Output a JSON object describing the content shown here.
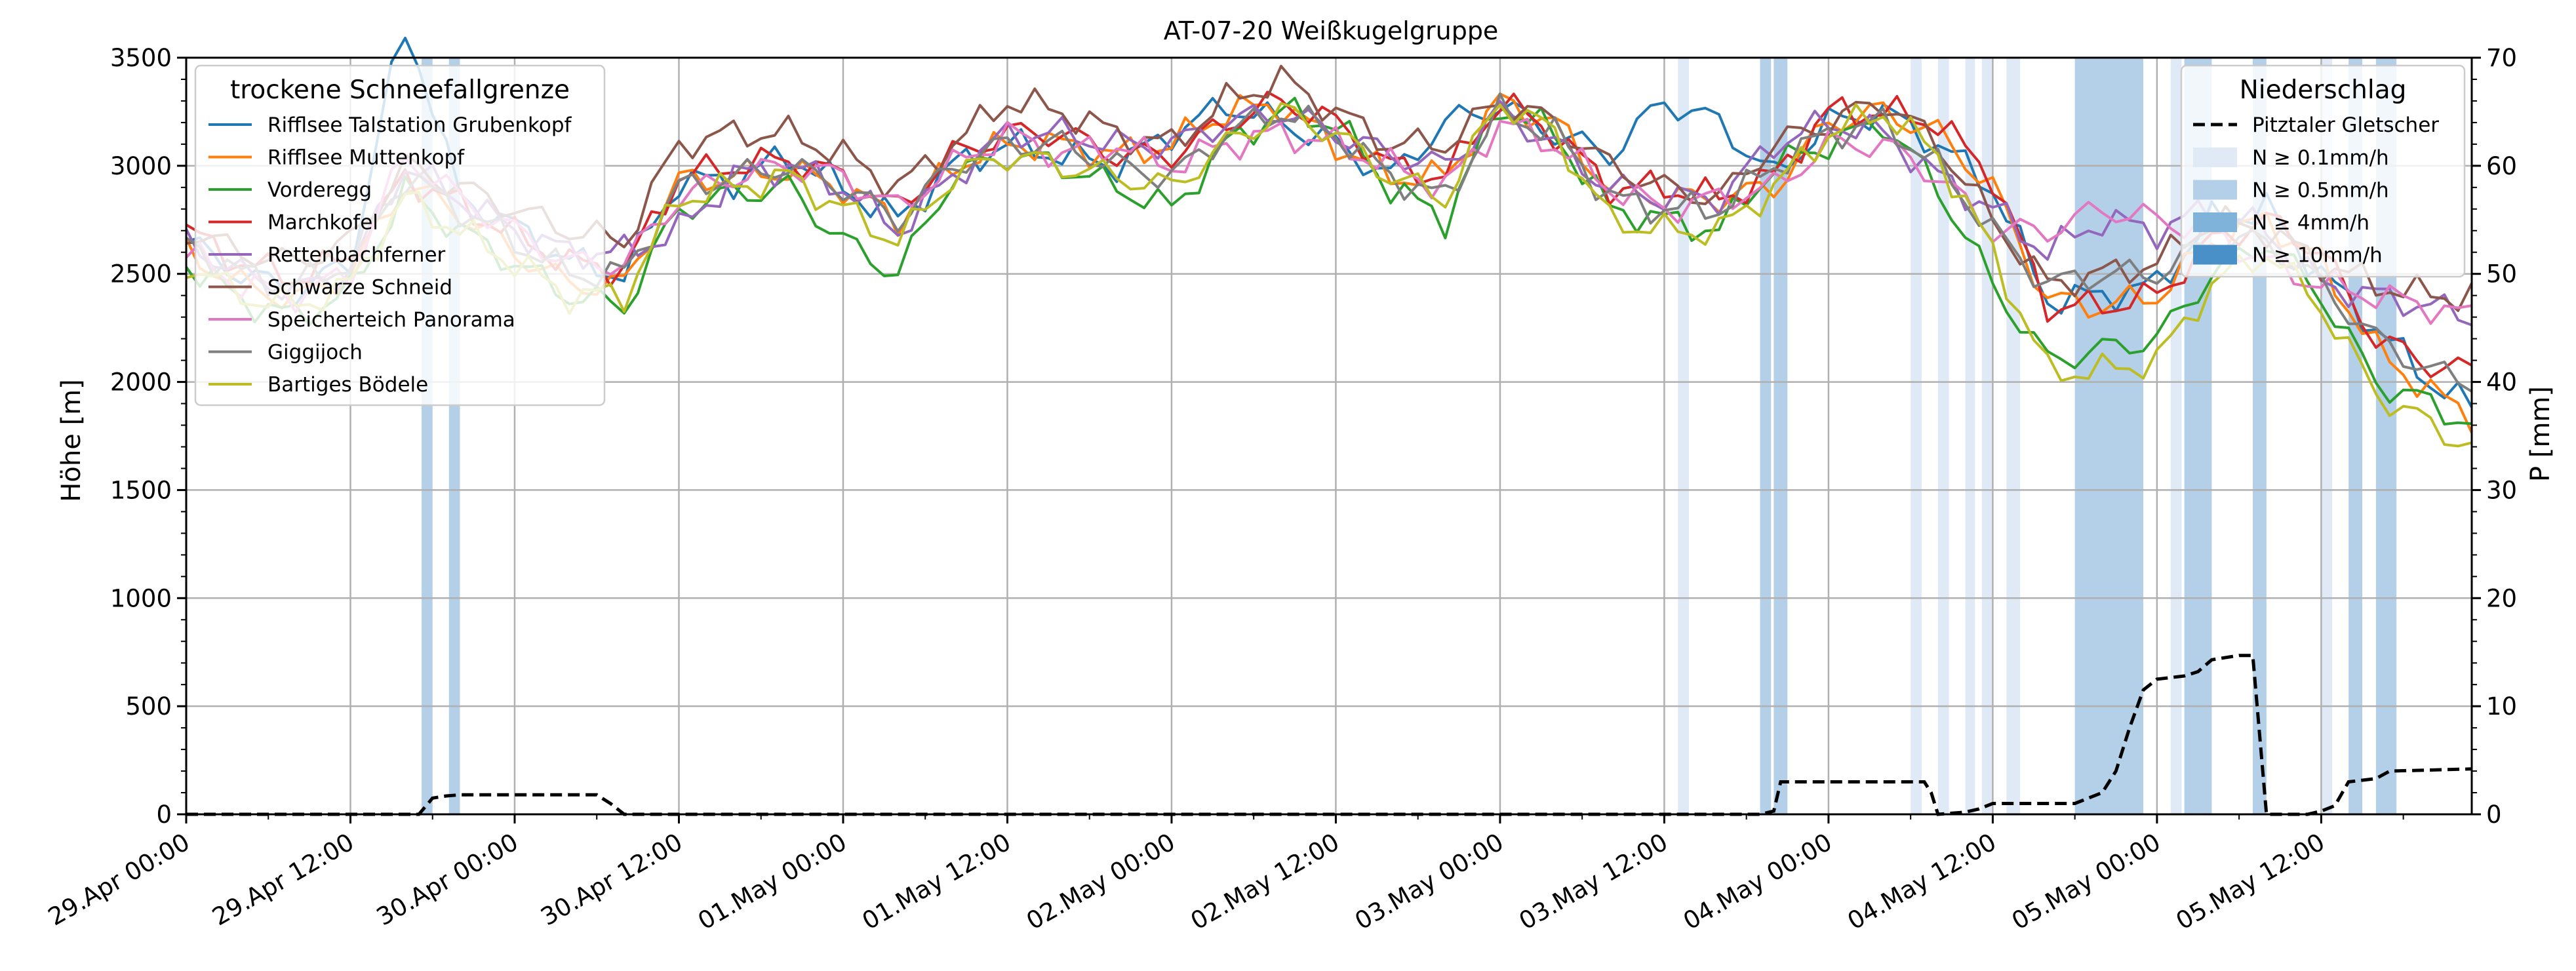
{
  "chart_data": {
    "type": "line",
    "title": "AT-07-20 Weißkugelgruppe",
    "xlabel": "",
    "ylabel": "Höhe [m]",
    "ylabel_right": "P [mm]",
    "ylim": [
      0,
      3500
    ],
    "ylim_right": [
      0,
      70
    ],
    "yticks": [
      0,
      500,
      1000,
      1500,
      2000,
      2500,
      3000,
      3500
    ],
    "yticks_right": [
      0,
      10,
      20,
      30,
      40,
      50,
      60,
      70
    ],
    "xlim": [
      0,
      167
    ],
    "x_tick_hours": [
      0,
      12,
      24,
      36,
      48,
      60,
      72,
      84,
      96,
      108,
      120,
      132,
      144,
      156
    ],
    "x_tick_labels": [
      "29.Apr 00:00",
      "29.Apr 12:00",
      "30.Apr 00:00",
      "30.Apr 12:00",
      "01.May 00:00",
      "01.May 12:00",
      "02.May 00:00",
      "02.May 12:00",
      "03.May 00:00",
      "03.May 12:00",
      "04.May 00:00",
      "04.May 12:00",
      "05.May 00:00",
      "05.May 12:00"
    ],
    "grid": true,
    "legend_left": {
      "title": "trockene Schneefallgrenze",
      "placement": "top-left",
      "entries": [
        "Rifflsee Talstation Grubenkopf",
        "Rifflsee Muttenkopf",
        "Vorderegg",
        "Marchkofel",
        "Rettenbachferner",
        "Schwarze Schneid",
        "Speicherteich Panorama",
        "Giggijoch",
        "Bartiges Bödele"
      ]
    },
    "legend_right": {
      "title": "Niederschlag",
      "placement": "top-right",
      "line_entry": "Pitztaler Gletscher",
      "band_entries": [
        "N ≥ 0.1mm/h",
        "N ≥ 0.5mm/h",
        "N ≥ 4mm/h",
        "N ≥ 10mm/h"
      ],
      "band_colors": [
        "#dfeaf6",
        "#b3d0e8",
        "#7fb3d9",
        "#4a90c8"
      ]
    },
    "series_colors": [
      "#1f77b4",
      "#ff7f0e",
      "#2ca02c",
      "#d62728",
      "#9467bd",
      "#8c564b",
      "#e377c2",
      "#7f7f7f",
      "#bcbd22"
    ],
    "x_keyframes": [
      0,
      4,
      8,
      12,
      16,
      20,
      24,
      28,
      32,
      36,
      40,
      44,
      48,
      52,
      56,
      60,
      64,
      68,
      72,
      76,
      80,
      84,
      88,
      92,
      96,
      100,
      104,
      108,
      112,
      116,
      120,
      124,
      128,
      132,
      136,
      140,
      144,
      148,
      152,
      156,
      160,
      164,
      167
    ],
    "series": [
      {
        "name": "Rifflsee Talstation Grubenkopf",
        "keyframes": [
          2650,
          2500,
          2420,
          2550,
          3700,
          2850,
          2720,
          2560,
          2500,
          2930,
          2930,
          3050,
          2900,
          2750,
          3000,
          3100,
          3050,
          3000,
          3150,
          3280,
          3200,
          3100,
          2950,
          3200,
          3280,
          3150,
          3050,
          3300,
          3200,
          2950,
          3200,
          3250,
          3100,
          2900,
          2380,
          2400,
          2450,
          2750,
          2800,
          2500,
          2250,
          2000,
          1880
        ]
      },
      {
        "name": "Rifflsee Muttenkopf",
        "keyframes": [
          2600,
          2450,
          2380,
          2500,
          2920,
          2780,
          2600,
          2450,
          2450,
          2930,
          2950,
          2980,
          2900,
          2750,
          3000,
          3100,
          3100,
          3050,
          3100,
          3250,
          3280,
          3100,
          2950,
          2950,
          3300,
          3200,
          2900,
          2850,
          2850,
          2900,
          3200,
          3250,
          3150,
          2900,
          2380,
          2350,
          2400,
          2650,
          2750,
          2550,
          2150,
          1950,
          1850
        ]
      },
      {
        "name": "Vorderegg",
        "keyframes": [
          2550,
          2380,
          2300,
          2420,
          2880,
          2700,
          2550,
          2400,
          2350,
          2800,
          2870,
          2900,
          2650,
          2500,
          2950,
          3050,
          3000,
          2900,
          2800,
          3100,
          3250,
          3200,
          2900,
          2750,
          3280,
          3150,
          2800,
          2750,
          2700,
          3000,
          3100,
          3200,
          2900,
          2450,
          2100,
          2150,
          2200,
          2500,
          2650,
          2400,
          2000,
          1900,
          1800
        ]
      },
      {
        "name": "Marchkofel",
        "keyframes": [
          2700,
          2550,
          2480,
          2580,
          2950,
          2820,
          2680,
          2550,
          2520,
          2950,
          3000,
          3030,
          2950,
          2800,
          3050,
          3150,
          3150,
          3050,
          3050,
          3200,
          3300,
          3200,
          3000,
          2950,
          3300,
          3150,
          2900,
          2900,
          2850,
          2950,
          3250,
          3250,
          3200,
          2950,
          2350,
          2350,
          2400,
          2650,
          2750,
          2600,
          2200,
          2080,
          2050
        ]
      },
      {
        "name": "Rettenbachferner",
        "keyframes": [
          2650,
          2500,
          2420,
          2520,
          3000,
          2850,
          2700,
          2600,
          2600,
          2700,
          2950,
          3000,
          2900,
          2700,
          2950,
          3150,
          3150,
          3100,
          3100,
          3200,
          3250,
          3150,
          3050,
          3000,
          3250,
          3100,
          2900,
          2850,
          2850,
          3100,
          3200,
          3150,
          2950,
          2800,
          2600,
          2750,
          2700,
          2800,
          2700,
          2450,
          2400,
          2350,
          2300
        ]
      },
      {
        "name": "Schwarze Schneid",
        "keyframes": [
          2700,
          2600,
          2550,
          2650,
          3000,
          2900,
          2800,
          2700,
          2650,
          3100,
          3150,
          3150,
          3050,
          2900,
          3100,
          3300,
          3250,
          3150,
          3100,
          3300,
          3400,
          3250,
          3100,
          3100,
          3300,
          3200,
          3000,
          2900,
          2850,
          3100,
          3200,
          3300,
          3100,
          2750,
          2450,
          2500,
          2550,
          2750,
          2700,
          2550,
          2450,
          2400,
          2400
        ]
      },
      {
        "name": "Speicherteich Panorama",
        "keyframes": [
          2600,
          2450,
          2400,
          2500,
          3050,
          2850,
          2700,
          2550,
          2550,
          2850,
          2950,
          3000,
          2950,
          2800,
          3000,
          3150,
          3050,
          3100,
          3000,
          3100,
          3150,
          3100,
          3000,
          2900,
          3200,
          3100,
          2900,
          2800,
          2850,
          2900,
          3100,
          3100,
          2950,
          2700,
          2700,
          2800,
          2750,
          2700,
          2550,
          2450,
          2400,
          2350,
          2300
        ]
      },
      {
        "name": "Giggijoch",
        "keyframes": [
          2650,
          2500,
          2450,
          2550,
          2950,
          2800,
          2650,
          2500,
          2500,
          2900,
          2950,
          3000,
          2900,
          2750,
          3000,
          3100,
          3100,
          3000,
          2950,
          3150,
          3250,
          3150,
          2950,
          2850,
          3250,
          3150,
          2850,
          2800,
          2800,
          3000,
          3150,
          3200,
          3000,
          2700,
          2450,
          2500,
          2500,
          2650,
          2650,
          2450,
          2200,
          2050,
          2000
        ]
      },
      {
        "name": "Bartiges Bödele",
        "keyframes": [
          2550,
          2400,
          2350,
          2450,
          2850,
          2700,
          2550,
          2400,
          2400,
          2850,
          2900,
          2950,
          2800,
          2650,
          2950,
          3050,
          3000,
          2950,
          2900,
          3100,
          3250,
          3150,
          2950,
          2850,
          3300,
          3150,
          2750,
          2700,
          2700,
          2900,
          3150,
          3250,
          3050,
          2600,
          2050,
          2050,
          2100,
          2450,
          2600,
          2350,
          1950,
          1800,
          1700
        ]
      }
    ],
    "precip_line": {
      "name": "Pitztaler Gletscher",
      "x": [
        0,
        17,
        18,
        19,
        20,
        30,
        31,
        32,
        115,
        116,
        116.5,
        127,
        127.5,
        128,
        130,
        131,
        132,
        138,
        140,
        141,
        142,
        143,
        144,
        146,
        147,
        148,
        150,
        151,
        152,
        155,
        156,
        157,
        158,
        160,
        161,
        167
      ],
      "y": [
        0,
        0,
        1.5,
        1.7,
        1.8,
        1.8,
        1.0,
        0,
        0,
        0.3,
        3.0,
        3.0,
        2.0,
        0,
        0.2,
        0.5,
        1.0,
        1.0,
        2.0,
        4.0,
        8.0,
        11.5,
        12.5,
        12.8,
        13.2,
        14.3,
        14.7,
        14.7,
        0,
        0,
        0.3,
        0.8,
        3.0,
        3.3,
        4.0,
        4.2
      ]
    },
    "precip_bands": [
      {
        "x0": 17.2,
        "x1": 18.0,
        "level": 1
      },
      {
        "x0": 19.2,
        "x1": 20.0,
        "level": 1
      },
      {
        "x0": 109.0,
        "x1": 109.8,
        "level": 0
      },
      {
        "x0": 115.0,
        "x1": 115.8,
        "level": 1
      },
      {
        "x0": 116.0,
        "x1": 117.0,
        "level": 1
      },
      {
        "x0": 126.0,
        "x1": 126.8,
        "level": 0
      },
      {
        "x0": 128.0,
        "x1": 128.8,
        "level": 0
      },
      {
        "x0": 130.0,
        "x1": 130.7,
        "level": 0
      },
      {
        "x0": 131.2,
        "x1": 132.0,
        "level": 0
      },
      {
        "x0": 133.0,
        "x1": 134.0,
        "level": 0
      },
      {
        "x0": 138.0,
        "x1": 143.0,
        "level": 1
      },
      {
        "x0": 145.0,
        "x1": 145.8,
        "level": 0
      },
      {
        "x0": 146.0,
        "x1": 148.0,
        "level": 1
      },
      {
        "x0": 151.0,
        "x1": 152.0,
        "level": 1
      },
      {
        "x0": 156.0,
        "x1": 156.8,
        "level": 0
      },
      {
        "x0": 158.0,
        "x1": 159.0,
        "level": 1
      },
      {
        "x0": 160.0,
        "x1": 161.5,
        "level": 1
      }
    ]
  }
}
